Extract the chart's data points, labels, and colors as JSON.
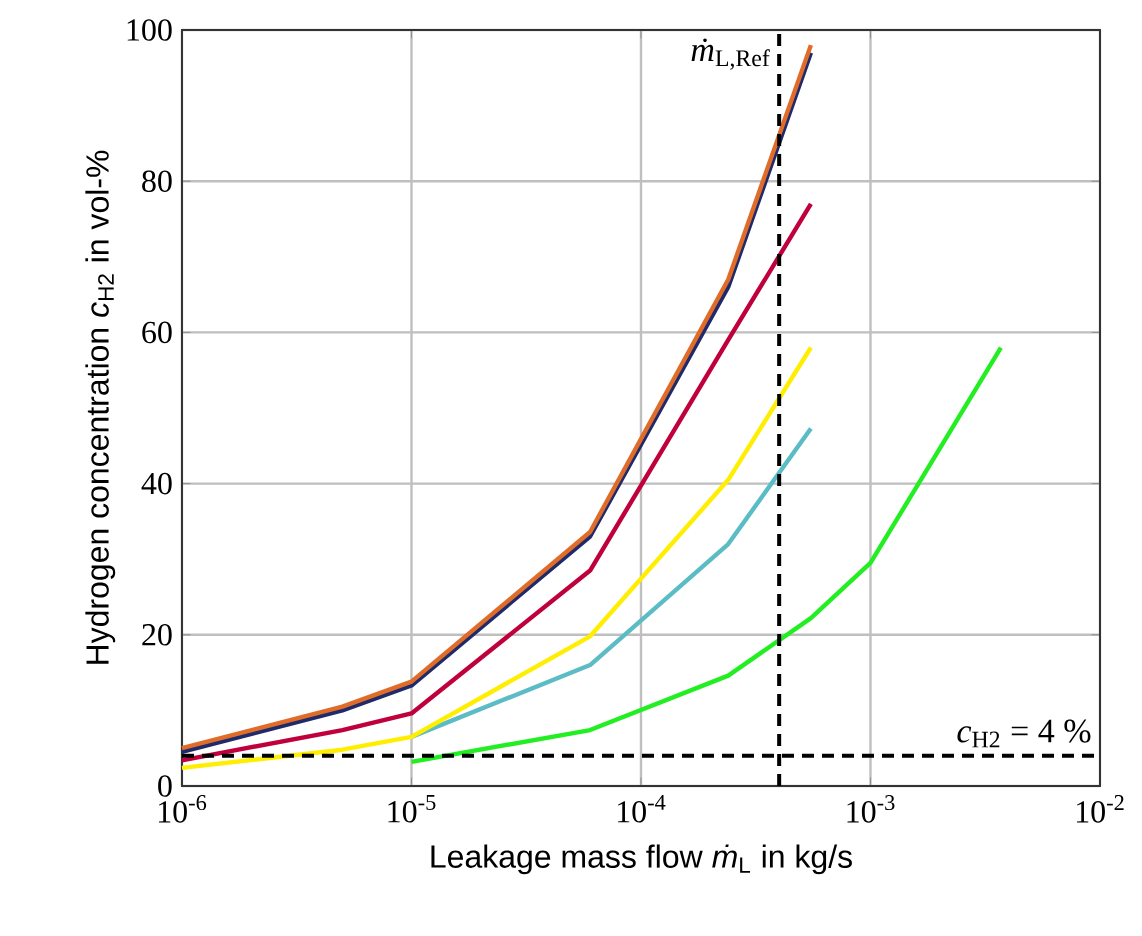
{
  "chart_data": {
    "type": "line",
    "xlabel": "Leakage mass flow *ṁ*$_{L}$ in kg/s",
    "ylabel": "Hydrogen concentration *c*$_{H2}$ in vol-%",
    "log": "x",
    "grid": true,
    "marker": "none",
    "line_style": "solid",
    "xlim": [
      1e-06,
      0.01
    ],
    "ylim": [
      0,
      100
    ],
    "xticks": [
      {
        "value": 1e-06,
        "label": "10$^{-6}$"
      },
      {
        "value": 1e-05,
        "label": "10$^{-5}$"
      },
      {
        "value": 0.0001,
        "label": "10$^{-4}$"
      },
      {
        "value": 0.001,
        "label": "10$^{-3}$"
      },
      {
        "value": 0.01,
        "label": "10$^{-2}$"
      }
    ],
    "yticks": [
      0,
      20,
      40,
      60,
      80,
      100
    ],
    "series": [
      {
        "color": "#1f2a6b",
        "x": [
          1e-06,
          5e-06,
          1e-05,
          6e-05,
          0.00024,
          0.00055
        ],
        "values": [
          4.5,
          10,
          13.3,
          33,
          66,
          97
        ]
      },
      {
        "color": "#e06c2a",
        "x": [
          1e-06,
          5e-06,
          1e-05,
          6e-05,
          0.00024,
          0.00055
        ],
        "values": [
          5,
          10.5,
          13.8,
          33.6,
          67,
          98
        ]
      },
      {
        "color": "#c0003c",
        "x": [
          1e-06,
          5e-06,
          1e-05,
          6e-05,
          0.00024,
          0.00055
        ],
        "values": [
          3.4,
          7.4,
          9.6,
          28.5,
          59,
          77
        ]
      },
      {
        "color": "#5bbcc6",
        "x": [
          1e-05,
          6e-05,
          0.00024,
          0.00055
        ],
        "values": [
          6.5,
          16,
          32,
          47.3
        ]
      },
      {
        "color": "#ffee00",
        "x": [
          1e-06,
          5e-06,
          1e-05,
          6e-05,
          0.00024,
          0.00055
        ],
        "values": [
          2.4,
          4.8,
          6.5,
          19.8,
          40.5,
          58
        ]
      },
      {
        "color": "#22ee22",
        "x": [
          1e-05,
          6e-05,
          0.00024,
          0.00055,
          0.001,
          0.0037
        ],
        "values": [
          3.2,
          7.4,
          14.6,
          22.2,
          29.5,
          58
        ]
      }
    ],
    "ref_lines": [
      {
        "axis": "x",
        "value": 0.0004,
        "label": "*ṁ*$_{L,Ref}$",
        "color": "#000000",
        "line_style": "dashed"
      },
      {
        "axis": "y",
        "value": 4,
        "label": "*c*$_{H2}$ = 4 %",
        "color": "#000000",
        "line_style": "dashed"
      }
    ]
  }
}
